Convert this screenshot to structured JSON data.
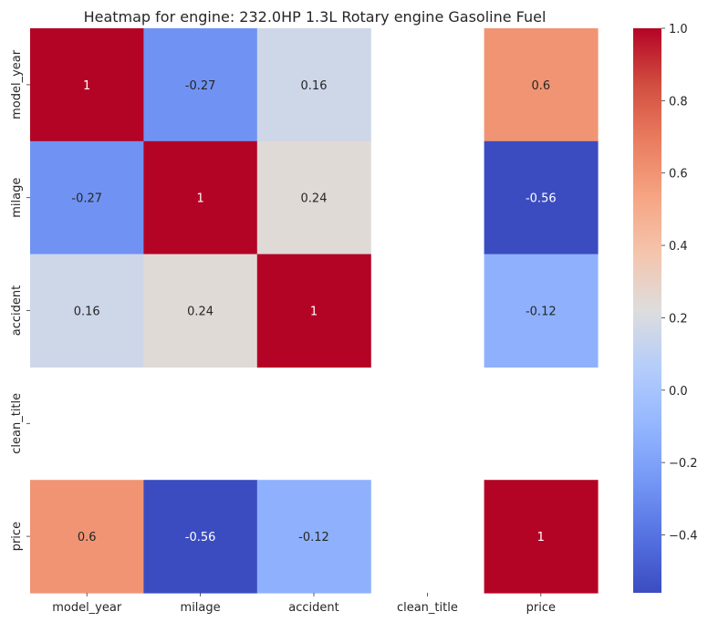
{
  "chart_data": {
    "type": "heatmap",
    "title": "Heatmap for engine: 232.0HP 1.3L Rotary engine Gasoline Fuel",
    "xlabel": "",
    "ylabel": "",
    "x_categories": [
      "model_year",
      "milage",
      "accident",
      "clean_title",
      "price"
    ],
    "y_categories": [
      "model_year",
      "milage",
      "accident",
      "clean_title",
      "price"
    ],
    "values": [
      [
        1,
        -0.27,
        0.16,
        null,
        0.6
      ],
      [
        -0.27,
        1,
        0.24,
        null,
        -0.56
      ],
      [
        0.16,
        0.24,
        1,
        null,
        -0.12
      ],
      [
        null,
        null,
        null,
        null,
        null
      ],
      [
        0.6,
        -0.56,
        -0.12,
        null,
        1
      ]
    ],
    "annotations": [
      [
        "1",
        "-0.27",
        "0.16",
        "",
        "0.6"
      ],
      [
        "-0.27",
        "1",
        "0.24",
        "",
        "-0.56"
      ],
      [
        "0.16",
        "0.24",
        "1",
        "",
        "-0.12"
      ],
      [
        "",
        "",
        "",
        "",
        ""
      ],
      [
        "0.6",
        "-0.56",
        "-0.12",
        "",
        "1"
      ]
    ],
    "colormap": "coolwarm",
    "vmin": -0.56,
    "vmax": 1.0,
    "colorbar_ticks": [
      -0.4,
      -0.2,
      0.0,
      0.2,
      0.4,
      0.6,
      0.8,
      1.0
    ],
    "colorbar_tick_labels": [
      "−0.4",
      "−0.2",
      "0.0",
      "0.2",
      "0.4",
      "0.6",
      "0.8",
      "1.0"
    ],
    "missing_color": "#ffffff"
  }
}
